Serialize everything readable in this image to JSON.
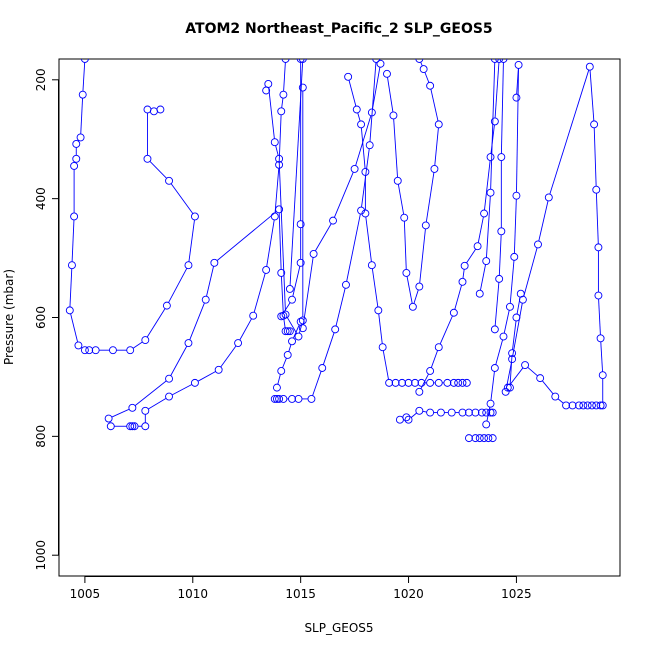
{
  "chart_data": {
    "type": "line",
    "title": "ATOM2 Northeast_Pacific_2 SLP_GEOS5",
    "xlabel": "SLP_GEOS5",
    "ylabel": "Pressure (mbar)",
    "xlim": [
      1003.8,
      1029.8
    ],
    "ylim": [
      1035,
      165
    ],
    "y_reversed": true,
    "xticks": [
      1005,
      1010,
      1015,
      1020,
      1025
    ],
    "yticks": [
      200,
      400,
      600,
      800,
      1000
    ],
    "xtick_labels": [
      "1005",
      "1010",
      "1015",
      "1020",
      "1025"
    ],
    "ytick_labels": [
      "200",
      "400",
      "600",
      "800",
      "1000"
    ],
    "color": "#0000ff",
    "marker": "open-circle",
    "grid": false,
    "series": [
      {
        "points": [
          [
            1005.0,
            165
          ],
          [
            1004.9,
            225
          ],
          [
            1004.8,
            297
          ],
          [
            1004.6,
            308
          ],
          [
            1004.6,
            333
          ],
          [
            1004.5,
            345
          ],
          [
            1004.5,
            430
          ],
          [
            1004.4,
            512
          ],
          [
            1004.3,
            588
          ],
          [
            1004.7,
            647
          ],
          [
            1005.0,
            655
          ],
          [
            1005.2,
            655
          ],
          [
            1005.5,
            655
          ],
          [
            1006.3,
            655
          ],
          [
            1007.1,
            655
          ],
          [
            1007.8,
            638
          ],
          [
            1008.8,
            580
          ],
          [
            1009.8,
            512
          ],
          [
            1010.1,
            430
          ],
          [
            1008.9,
            370
          ],
          [
            1007.9,
            333
          ],
          [
            1007.9,
            250
          ],
          [
            1008.2,
            253
          ],
          [
            1008.5,
            250
          ]
        ]
      },
      {
        "points": [
          [
            1006.2,
            783
          ],
          [
            1007.1,
            783
          ],
          [
            1007.2,
            783
          ],
          [
            1007.3,
            783
          ],
          [
            1007.8,
            783
          ],
          [
            1007.8,
            757
          ],
          [
            1008.9,
            733
          ],
          [
            1010.1,
            710
          ],
          [
            1011.2,
            688
          ],
          [
            1012.1,
            643
          ],
          [
            1012.8,
            597
          ],
          [
            1013.4,
            520
          ],
          [
            1013.8,
            430
          ],
          [
            1014.0,
            343
          ],
          [
            1014.1,
            253
          ],
          [
            1014.2,
            225
          ],
          [
            1014.3,
            165
          ]
        ]
      },
      {
        "points": [
          [
            1006.1,
            770
          ],
          [
            1007.2,
            752
          ],
          [
            1008.9,
            703
          ],
          [
            1009.8,
            643
          ],
          [
            1010.6,
            570
          ],
          [
            1011.0,
            508
          ],
          [
            1014.0,
            418
          ],
          [
            1014.1,
            525
          ],
          [
            1014.2,
            597
          ],
          [
            1014.3,
            623
          ],
          [
            1014.4,
            623
          ],
          [
            1014.5,
            623
          ]
        ]
      },
      {
        "points": [
          [
            1013.8,
            737
          ],
          [
            1013.9,
            737
          ],
          [
            1014.0,
            737
          ],
          [
            1014.2,
            737
          ],
          [
            1014.6,
            737
          ],
          [
            1014.9,
            737
          ],
          [
            1015.5,
            737
          ],
          [
            1016.0,
            685
          ],
          [
            1016.6,
            620
          ],
          [
            1017.1,
            545
          ],
          [
            1017.8,
            420
          ],
          [
            1018.2,
            310
          ],
          [
            1018.5,
            165
          ]
        ]
      },
      {
        "points": [
          [
            1013.9,
            718
          ],
          [
            1014.1,
            690
          ],
          [
            1014.4,
            663
          ],
          [
            1014.6,
            640
          ],
          [
            1015.0,
            607
          ],
          [
            1015.1,
            618
          ],
          [
            1015.6,
            493
          ],
          [
            1016.5,
            437
          ],
          [
            1017.5,
            350
          ],
          [
            1018.3,
            255
          ],
          [
            1018.7,
            173
          ]
        ]
      },
      {
        "points": [
          [
            1014.1,
            598
          ],
          [
            1014.6,
            570
          ],
          [
            1015.0,
            508
          ],
          [
            1015.0,
            443
          ],
          [
            1015.0,
            165
          ]
        ]
      },
      {
        "points": [
          [
            1013.4,
            218
          ],
          [
            1013.5,
            207
          ],
          [
            1013.8,
            305
          ],
          [
            1014.0,
            333
          ],
          [
            1014.3,
            595
          ],
          [
            1014.9,
            632
          ],
          [
            1015.1,
            605
          ],
          [
            1015.1,
            213
          ]
        ]
      },
      {
        "points": [
          [
            1014.5,
            552
          ],
          [
            1015.1,
            165
          ]
        ]
      },
      {
        "points": [
          [
            1017.2,
            195
          ],
          [
            1017.6,
            250
          ],
          [
            1017.8,
            275
          ],
          [
            1018.0,
            355
          ],
          [
            1018.0,
            425
          ],
          [
            1018.3,
            512
          ],
          [
            1018.6,
            588
          ],
          [
            1018.8,
            650
          ],
          [
            1019.1,
            710
          ],
          [
            1019.4,
            710
          ],
          [
            1019.7,
            710
          ],
          [
            1020.0,
            710
          ],
          [
            1020.3,
            710
          ],
          [
            1020.6,
            710
          ],
          [
            1021.0,
            710
          ],
          [
            1021.4,
            710
          ],
          [
            1021.8,
            710
          ],
          [
            1022.1,
            710
          ],
          [
            1022.3,
            710
          ],
          [
            1022.5,
            710
          ],
          [
            1022.7,
            710
          ]
        ]
      },
      {
        "points": [
          [
            1019.0,
            190
          ],
          [
            1019.3,
            260
          ],
          [
            1019.5,
            370
          ],
          [
            1019.8,
            432
          ],
          [
            1019.9,
            525
          ],
          [
            1020.2,
            582
          ],
          [
            1020.5,
            548
          ],
          [
            1020.8,
            445
          ],
          [
            1021.2,
            350
          ],
          [
            1021.4,
            275
          ],
          [
            1021.0,
            210
          ],
          [
            1020.7,
            182
          ],
          [
            1020.5,
            165
          ]
        ]
      },
      {
        "points": [
          [
            1019.6,
            772
          ],
          [
            1019.9,
            768
          ],
          [
            1020.0,
            772
          ],
          [
            1020.5,
            757
          ],
          [
            1021.0,
            760
          ],
          [
            1021.5,
            760
          ],
          [
            1022.0,
            760
          ],
          [
            1022.5,
            760
          ],
          [
            1022.8,
            760
          ],
          [
            1023.1,
            760
          ],
          [
            1023.4,
            760
          ],
          [
            1023.6,
            760
          ],
          [
            1023.8,
            760
          ],
          [
            1023.9,
            760
          ]
        ]
      },
      {
        "points": [
          [
            1022.8,
            803
          ],
          [
            1023.1,
            803
          ],
          [
            1023.3,
            803
          ],
          [
            1023.5,
            803
          ],
          [
            1023.7,
            803
          ],
          [
            1023.9,
            803
          ]
        ]
      },
      {
        "points": [
          [
            1020.5,
            725
          ],
          [
            1021.0,
            690
          ],
          [
            1021.4,
            650
          ],
          [
            1022.1,
            592
          ],
          [
            1022.5,
            540
          ],
          [
            1022.6,
            513
          ],
          [
            1023.2,
            480
          ],
          [
            1023.5,
            425
          ],
          [
            1023.8,
            330
          ],
          [
            1024.0,
            270
          ],
          [
            1024.2,
            165
          ]
        ]
      },
      {
        "points": [
          [
            1023.3,
            560
          ],
          [
            1023.6,
            505
          ],
          [
            1023.8,
            390
          ],
          [
            1024.0,
            165
          ]
        ]
      },
      {
        "points": [
          [
            1024.0,
            620
          ],
          [
            1024.2,
            535
          ],
          [
            1024.3,
            455
          ],
          [
            1024.3,
            330
          ],
          [
            1024.4,
            165
          ]
        ]
      },
      {
        "points": [
          [
            1025.0,
            230
          ],
          [
            1025.1,
            175
          ],
          [
            1025.0,
            395
          ],
          [
            1024.9,
            498
          ],
          [
            1024.7,
            582
          ],
          [
            1024.4,
            632
          ],
          [
            1024.0,
            685
          ],
          [
            1023.8,
            745
          ],
          [
            1023.6,
            780
          ]
        ]
      },
      {
        "points": [
          [
            1025.2,
            560
          ],
          [
            1025.0,
            600
          ],
          [
            1024.8,
            660
          ],
          [
            1024.7,
            718
          ]
        ]
      },
      {
        "points": [
          [
            1024.6,
            718
          ],
          [
            1025.4,
            680
          ],
          [
            1026.1,
            702
          ],
          [
            1026.8,
            733
          ],
          [
            1027.3,
            748
          ],
          [
            1027.6,
            748
          ],
          [
            1027.9,
            748
          ],
          [
            1028.1,
            748
          ],
          [
            1028.3,
            748
          ],
          [
            1028.5,
            748
          ],
          [
            1028.7,
            748
          ],
          [
            1028.9,
            748
          ]
        ]
      },
      {
        "points": [
          [
            1024.5,
            725
          ],
          [
            1024.8,
            670
          ],
          [
            1025.3,
            570
          ],
          [
            1026.0,
            477
          ],
          [
            1026.5,
            398
          ],
          [
            1028.4,
            178
          ],
          [
            1028.6,
            275
          ],
          [
            1028.7,
            385
          ],
          [
            1028.8,
            482
          ],
          [
            1028.8,
            563
          ],
          [
            1028.9,
            635
          ],
          [
            1029.0,
            697
          ],
          [
            1029.0,
            748
          ]
        ]
      }
    ]
  }
}
